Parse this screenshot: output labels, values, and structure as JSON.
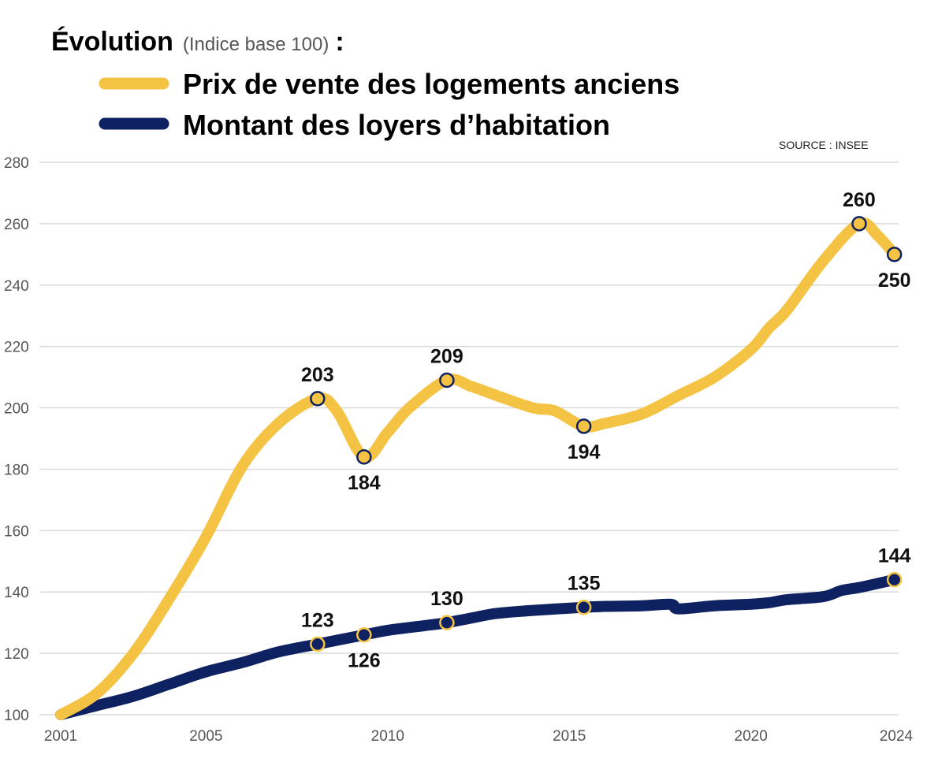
{
  "chart_data": {
    "type": "line",
    "title": "Évolution",
    "subtitle": "(Indice base 100)",
    "title_suffix": ":",
    "source": "SOURCE : INSEE",
    "xlim": [
      2001,
      2024
    ],
    "ylim": [
      100,
      280
    ],
    "grid": true,
    "legend_placement": "top-left",
    "x_ticks": [
      2001,
      2005,
      2010,
      2015,
      2020,
      2024
    ],
    "y_ticks": [
      100,
      120,
      140,
      160,
      180,
      200,
      220,
      240,
      260,
      280
    ],
    "series": [
      {
        "name": "Prix de vente des logements anciens",
        "color": "#F5C344",
        "marker_fill": "#F5C344",
        "marker_stroke": "#0E2160",
        "points": [
          [
            2001,
            100
          ],
          [
            2002,
            107
          ],
          [
            2003,
            120
          ],
          [
            2004,
            138
          ],
          [
            2005,
            158
          ],
          [
            2006,
            181
          ],
          [
            2007,
            195
          ],
          [
            2008.07,
            203
          ],
          [
            2008.6,
            199
          ],
          [
            2009.35,
            184
          ],
          [
            2010,
            192
          ],
          [
            2010.6,
            200
          ],
          [
            2011.63,
            209
          ],
          [
            2012.3,
            207
          ],
          [
            2013,
            204
          ],
          [
            2014,
            200
          ],
          [
            2014.6,
            199
          ],
          [
            2015.4,
            194
          ],
          [
            2016,
            195
          ],
          [
            2017,
            198
          ],
          [
            2018,
            204
          ],
          [
            2019,
            210
          ],
          [
            2020,
            219
          ],
          [
            2020.5,
            226
          ],
          [
            2021,
            232
          ],
          [
            2022,
            248
          ],
          [
            2022.98,
            260
          ],
          [
            2023.5,
            256
          ],
          [
            2023.95,
            250
          ]
        ],
        "annotations": [
          {
            "x": 2008.07,
            "y": 203,
            "label": "203",
            "pos": "above"
          },
          {
            "x": 2009.35,
            "y": 184,
            "label": "184",
            "pos": "below"
          },
          {
            "x": 2011.63,
            "y": 209,
            "label": "209",
            "pos": "above"
          },
          {
            "x": 2015.4,
            "y": 194,
            "label": "194",
            "pos": "below"
          },
          {
            "x": 2022.98,
            "y": 260,
            "label": "260",
            "pos": "above"
          },
          {
            "x": 2023.95,
            "y": 250,
            "label": "250",
            "pos": "below"
          }
        ]
      },
      {
        "name": "Montant des loyers d’habitation",
        "color": "#0E2160",
        "marker_fill": "#0E2160",
        "marker_stroke": "#F5C344",
        "points": [
          [
            2001,
            100
          ],
          [
            2002,
            103
          ],
          [
            2003,
            106
          ],
          [
            2004,
            110
          ],
          [
            2005,
            114
          ],
          [
            2006,
            117
          ],
          [
            2007,
            120.5
          ],
          [
            2008.07,
            123
          ],
          [
            2009.35,
            126
          ],
          [
            2010,
            127.5
          ],
          [
            2011,
            129
          ],
          [
            2011.63,
            130
          ],
          [
            2012.3,
            131.5
          ],
          [
            2013,
            133
          ],
          [
            2014,
            134
          ],
          [
            2015.4,
            135
          ],
          [
            2016,
            135.3
          ],
          [
            2017,
            135.5
          ],
          [
            2017.8,
            136
          ],
          [
            2018,
            134.5
          ],
          [
            2019,
            135.5
          ],
          [
            2020,
            136
          ],
          [
            2020.5,
            136.5
          ],
          [
            2021,
            137.5
          ],
          [
            2022,
            138.5
          ],
          [
            2022.5,
            140.5
          ],
          [
            2023,
            141.5
          ],
          [
            2023.95,
            144
          ]
        ],
        "annotations": [
          {
            "x": 2008.07,
            "y": 123,
            "label": "123",
            "pos": "above"
          },
          {
            "x": 2009.35,
            "y": 126,
            "label": "126",
            "pos": "below"
          },
          {
            "x": 2011.63,
            "y": 130,
            "label": "130",
            "pos": "above"
          },
          {
            "x": 2015.4,
            "y": 135,
            "label": "135",
            "pos": "above"
          },
          {
            "x": 2023.95,
            "y": 144,
            "label": "144",
            "pos": "above"
          }
        ]
      }
    ]
  }
}
